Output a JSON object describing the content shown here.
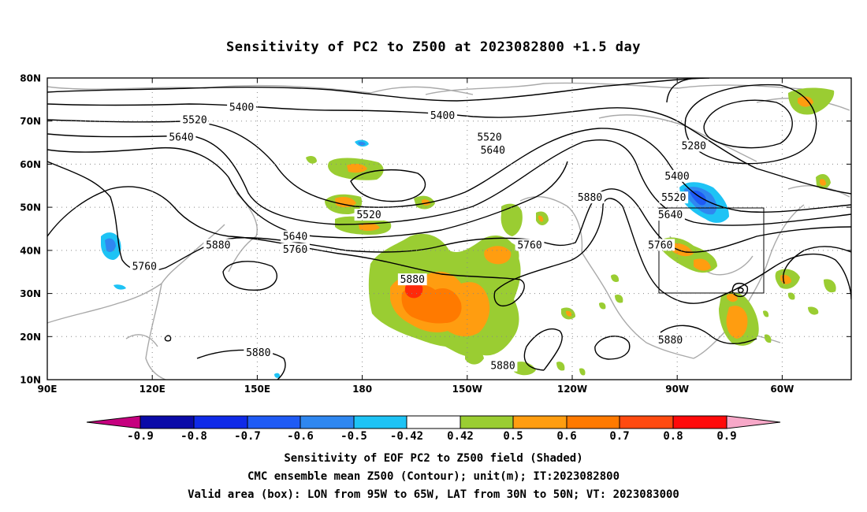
{
  "title": "Sensitivity of PC2 to Z500 at 2023082800 +1.5 day",
  "axes": {
    "lat_labels": [
      "80N",
      "70N",
      "60N",
      "50N",
      "40N",
      "30N",
      "20N",
      "10N"
    ],
    "lon_labels": [
      "90E",
      "120E",
      "150E",
      "180",
      "150W",
      "120W",
      "90W",
      "60W"
    ]
  },
  "contour_labels": [
    {
      "text": "5400",
      "lon": 148,
      "lat": 73
    },
    {
      "text": "5400",
      "lon": -152,
      "lat": 71
    },
    {
      "text": "5520",
      "lon": 134,
      "lat": 70
    },
    {
      "text": "5640",
      "lon": 130,
      "lat": 66
    },
    {
      "text": "5520",
      "lon": -138,
      "lat": 66
    },
    {
      "text": "5640",
      "lon": -137,
      "lat": 63
    },
    {
      "text": "5280",
      "lon": -77,
      "lat": 64
    },
    {
      "text": "5400",
      "lon": -82,
      "lat": 57
    },
    {
      "text": "5520",
      "lon": -83,
      "lat": 52
    },
    {
      "text": "5640",
      "lon": -84,
      "lat": 48
    },
    {
      "text": "5880",
      "lon": -108,
      "lat": 52
    },
    {
      "text": "5520",
      "lon": -174,
      "lat": 48
    },
    {
      "text": "5640",
      "lon": 164,
      "lat": 43
    },
    {
      "text": "5760",
      "lon": 164,
      "lat": 40
    },
    {
      "text": "5880",
      "lon": 141,
      "lat": 41
    },
    {
      "text": "5760",
      "lon": 119,
      "lat": 36
    },
    {
      "text": "5760",
      "lon": -126,
      "lat": 41
    },
    {
      "text": "5760",
      "lon": -87,
      "lat": 41
    },
    {
      "text": "5880",
      "lon": -161,
      "lat": 33
    },
    {
      "text": "5880",
      "lon": -84,
      "lat": 19
    },
    {
      "text": "5880",
      "lon": 153,
      "lat": 16
    },
    {
      "text": "5880",
      "lon": -134,
      "lat": 13
    }
  ],
  "valid_box": {
    "lon_min": -95,
    "lon_max": -65,
    "lat_min": 30,
    "lat_max": 50
  },
  "colorbar": {
    "labels": [
      "-0.9",
      "-0.8",
      "-0.7",
      "-0.6",
      "-0.5",
      "-0.42",
      "0.42",
      "0.5",
      "0.6",
      "0.7",
      "0.8",
      "0.9"
    ],
    "colors": [
      "#c6007f",
      "#0a0aa8",
      "#0f2ae8",
      "#1f5bf5",
      "#2f87f0",
      "#1ec3f5",
      "#ffffff",
      "#9acd32",
      "#ff9d10",
      "#ff7a00",
      "#ff4a10",
      "#ff0a0a",
      "#f7a8c8"
    ]
  },
  "shaded_colors": {
    "green": "#9acd32",
    "orange": "#ff9d10",
    "dark_orange": "#ff7a00",
    "red": "#ff2a0a",
    "cyan": "#1ec3f5",
    "light_blue": "#2f87f0",
    "blue": "#1f5bf5"
  },
  "footer": [
    "Sensitivity of EOF PC2 to Z500 field (Shaded)",
    "CMC ensemble mean Z500 (Contour); unit(m); IT:2023082800",
    "Valid area (box): LON from 95W to 65W, LAT from 30N to 50N; VT: 2023083000"
  ]
}
